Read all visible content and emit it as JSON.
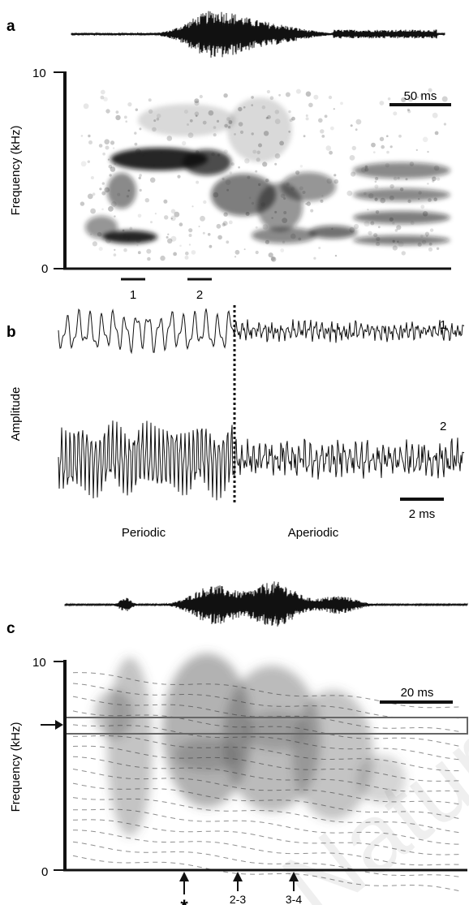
{
  "panels": {
    "a": {
      "letter": "a",
      "ylabel": "Frequency (kHz)",
      "y_top": "10",
      "y_bottom": "0",
      "scale_bar": "50 ms",
      "segment_labels": [
        "1",
        "2"
      ]
    },
    "b": {
      "letter": "b",
      "ylabel": "Amplitude",
      "trace_labels": [
        "1",
        "2"
      ],
      "scale_bar": "2 ms",
      "regions": [
        "Periodic",
        "Aperiodic"
      ]
    },
    "c": {
      "letter": "c",
      "ylabel": "Frequency (kHz)",
      "y_top": "10",
      "y_bottom": "0",
      "scale_bar": "20 ms",
      "markers": [
        "*",
        "2-3",
        "3-4"
      ]
    }
  },
  "colors": {
    "ink": "#111111",
    "band": "#666666",
    "watermark": "#e8e8e8"
  },
  "watermark_text": "Nature Macmillan"
}
